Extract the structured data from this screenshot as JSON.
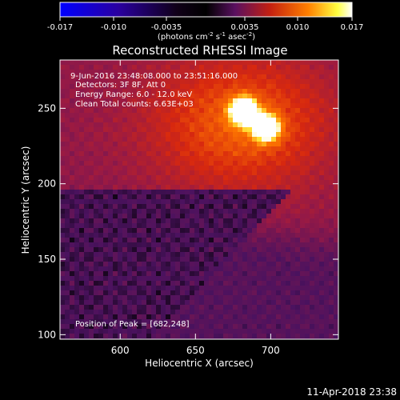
{
  "colorbar": {
    "ticks": [
      "-0.017",
      "-0.010",
      "-0.0035",
      "0.0035",
      "0.010",
      "0.017"
    ],
    "units_main": "(photons cm",
    "units_exp1": "-2",
    "units_mid": " s",
    "units_exp2": "-1",
    "units_after": " asec",
    "units_exp3": "-2",
    "units_close": ")"
  },
  "title": "Reconstructed RHESSI Image",
  "annotations": {
    "time_range": "9-Jun-2016 23:48:08.000 to 23:51:16.000",
    "detectors": "Detectors: 3F 8F, Att 0",
    "energy": "Energy Range: 6.0 - 12.0 keV",
    "clean": "Clean     Total counts: 6.63E+03",
    "peak": "Position of Peak = [682,248]"
  },
  "footer_date": "11-Apr-2018 23:38",
  "chart_data": {
    "type": "heatmap",
    "title": "Reconstructed RHESSI Image",
    "xlabel": "Heliocentric X (arcsec)",
    "ylabel": "Heliocentric Y (arcsec)",
    "xlim": [
      560,
      745
    ],
    "ylim": [
      97,
      282
    ],
    "x_ticks": [
      600,
      650,
      700
    ],
    "y_ticks": [
      100,
      150,
      200,
      250
    ],
    "colorbar_range": [
      -0.017,
      0.017
    ],
    "peak": [
      682,
      248
    ],
    "sources": [
      {
        "x": 682,
        "y": 248,
        "peak": 1.0
      },
      {
        "x": 697,
        "y": 237,
        "peak": 0.9
      }
    ],
    "colormap": [
      "#0000ff",
      "#1a0055",
      "#000000",
      "#5a1060",
      "#c42010",
      "#ff8000",
      "#ffff40",
      "#ffffff"
    ]
  }
}
